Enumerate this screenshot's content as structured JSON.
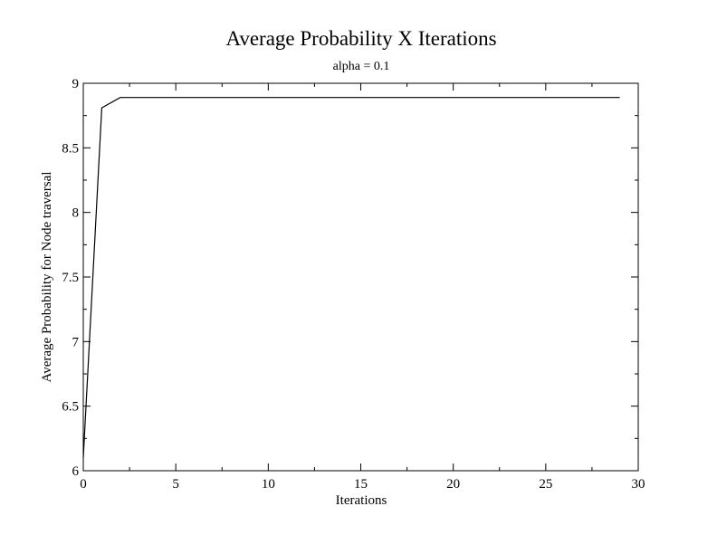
{
  "chart_data": {
    "type": "line",
    "title": "Average Probability X Iterations",
    "subtitle": "alpha = 0.1",
    "xlabel": "Iterations",
    "ylabel": "Average Probability for Node traversal",
    "xlim": [
      0,
      30
    ],
    "ylim": [
      6,
      9
    ],
    "x_ticks": [
      "0",
      "5",
      "10",
      "15",
      "20",
      "25",
      "30"
    ],
    "y_ticks": [
      "6",
      "6.5",
      "7",
      "7.5",
      "8",
      "8.5",
      "9"
    ],
    "grid": false,
    "legend": "none",
    "series": [
      {
        "x": [
          0,
          1,
          2,
          3,
          4,
          5,
          6,
          7,
          8,
          9,
          10,
          11,
          12,
          13,
          14,
          15,
          16,
          17,
          18,
          19,
          20,
          21,
          22,
          23,
          24,
          25,
          26,
          27,
          28,
          29
        ],
        "values": [
          6.1,
          8.81,
          8.89,
          8.89,
          8.89,
          8.89,
          8.89,
          8.89,
          8.89,
          8.89,
          8.89,
          8.89,
          8.89,
          8.89,
          8.89,
          8.89,
          8.89,
          8.89,
          8.89,
          8.89,
          8.89,
          8.89,
          8.89,
          8.89,
          8.89,
          8.89,
          8.89,
          8.89,
          8.89,
          8.89
        ]
      }
    ],
    "line_color": "#000000"
  }
}
